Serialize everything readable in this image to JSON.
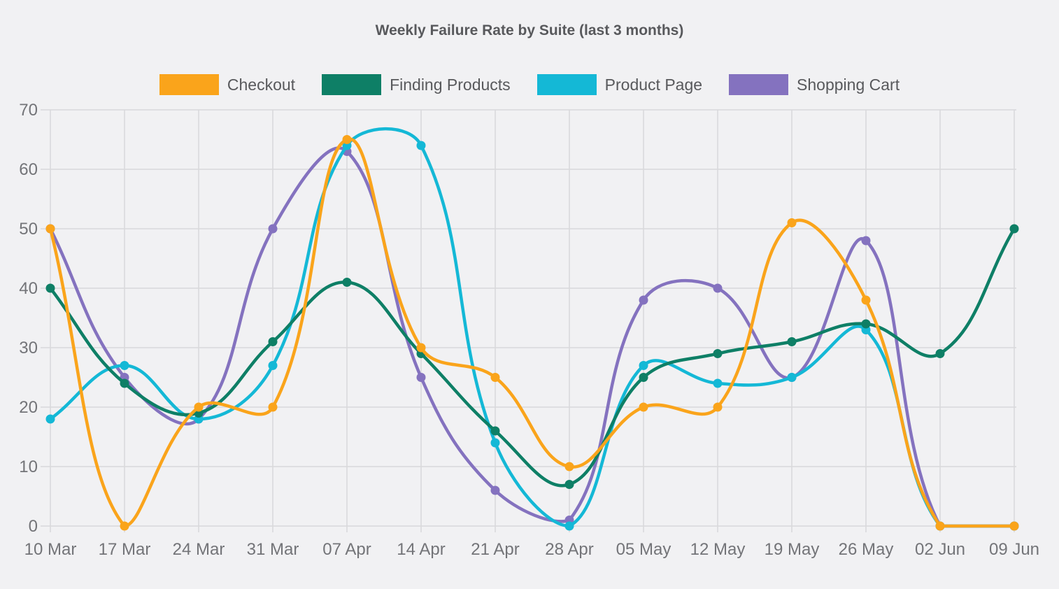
{
  "title": "Weekly Failure Rate by Suite (last 3 months)",
  "colors": {
    "background": "#F1F1F3",
    "gridline": "#D8D8DB",
    "title_text": "#58595C",
    "axis_text": "#737478"
  },
  "chart_data": {
    "type": "line",
    "title": "Weekly Failure Rate by Suite (last 3 months)",
    "categories": [
      "10 Mar",
      "17 Mar",
      "24 Mar",
      "31 Mar",
      "07 Apr",
      "14 Apr",
      "21 Apr",
      "28 Apr",
      "05 May",
      "12 May",
      "19 May",
      "26 May",
      "02 Jun",
      "09 Jun"
    ],
    "series": [
      {
        "name": "Checkout",
        "color": "#FAA41B",
        "values": [
          50,
          0,
          20,
          20,
          65,
          30,
          25,
          10,
          20,
          20,
          51,
          38,
          0,
          0
        ]
      },
      {
        "name": "Finding Products",
        "color": "#0E7F66",
        "values": [
          40,
          24,
          19,
          31,
          41,
          29,
          16,
          7,
          25,
          29,
          31,
          34,
          29,
          50
        ]
      },
      {
        "name": "Product Page",
        "color": "#14B8D6",
        "values": [
          18,
          27,
          18,
          27,
          64,
          64,
          14,
          0,
          27,
          24,
          25,
          33,
          0,
          0
        ]
      },
      {
        "name": "Shopping Cart",
        "color": "#8472BF",
        "values": [
          50,
          25,
          18,
          50,
          63,
          25,
          6,
          1,
          38,
          40,
          25,
          48,
          0,
          0
        ]
      }
    ],
    "xlabel": "",
    "ylabel": "",
    "ylim": [
      0,
      70
    ],
    "ytick_step": 10,
    "grid": true,
    "legend_position": "top"
  }
}
